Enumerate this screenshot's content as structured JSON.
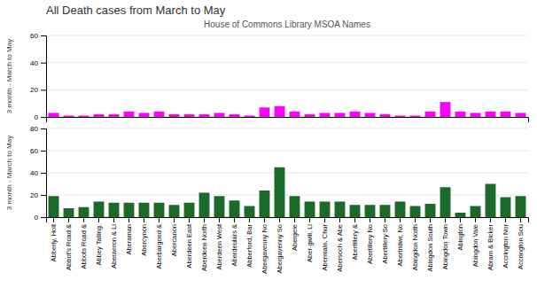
{
  "chart_data": [
    {
      "type": "bar",
      "title": "All Death cases from March to May",
      "subtitle": "House of Commons Library MSOA Names",
      "y_label": "3 month - March to May",
      "categories": [
        "Abberly, Holt",
        "Abbot's Road &",
        "Abbots Road &",
        "Abbey Talling.",
        "Aberaeron & Ll",
        "Aberaman",
        "Abercynon",
        "Aberbargoed &",
        "Abercanon",
        "Aberdeen East",
        "Aberdeen North",
        "Aberdeen West",
        "Aberdeulars &",
        "Abberford, Bar",
        "Abergavenny No",
        "Abergavenny So",
        "Abergele",
        "Aber-gwili, Ll",
        "Abermain, Chur",
        "Abersoch & Abe",
        "Abertillery &",
        "Abertillery No",
        "Abertillery So",
        "Abertridwr, No",
        "Abingdon North",
        "Abingdon South",
        "Abingdon Town",
        "Abington",
        "Abingdon Vale",
        "Abram & Bicker",
        "Accrington Nor",
        "Accrington Sou"
      ],
      "values": [
        3,
        1,
        1,
        2,
        2,
        4,
        3,
        4,
        2,
        2,
        2,
        3,
        2,
        1,
        7,
        8,
        4,
        2,
        3,
        3,
        4,
        3,
        2,
        1,
        1,
        4,
        11,
        4,
        3,
        4,
        4,
        3
      ],
      "color": "#FF00FF",
      "ylim": [
        0,
        60
      ],
      "yticks": [
        0,
        20,
        40,
        60
      ],
      "grid": true,
      "tick_labels": "y"
    },
    {
      "type": "bar",
      "y_label": "3 month - March to May",
      "categories": [
        "Abberly, Holt",
        "Abbot's Road &",
        "Abbots Road &",
        "Abbey Talling.",
        "Aberaeron & Ll",
        "Aberaman",
        "Abercynon",
        "Aberbargoed &",
        "Abercanon",
        "Aberdeen East",
        "Aberdeen North",
        "Aberdeen West",
        "Aberdeulars &",
        "Abberford, Bar",
        "Abergavenny No",
        "Abergavenny So",
        "Abergele",
        "Aber-gwili, Ll",
        "Abermain, Chur",
        "Abersoch & Abe",
        "Abertillery &",
        "Abertillery No",
        "Abertillery So",
        "Abertridwr, No",
        "Abingdon North",
        "Abingdon South",
        "Abingdon Town",
        "Abington",
        "Abingdon Vale",
        "Abram & Bicker",
        "Accrington Nor",
        "Accrington Sou"
      ],
      "values": [
        19,
        8,
        9,
        14,
        13,
        13,
        13,
        13,
        11,
        13,
        22,
        19,
        15,
        10,
        24,
        45,
        19,
        14,
        14,
        14,
        11,
        11,
        11,
        14,
        10,
        12,
        27,
        4,
        10,
        30,
        18,
        19
      ],
      "color": "#1a6b2a",
      "ylim": [
        0,
        80
      ],
      "yticks": [
        0,
        20,
        40,
        60,
        80
      ],
      "grid": true
    }
  ]
}
